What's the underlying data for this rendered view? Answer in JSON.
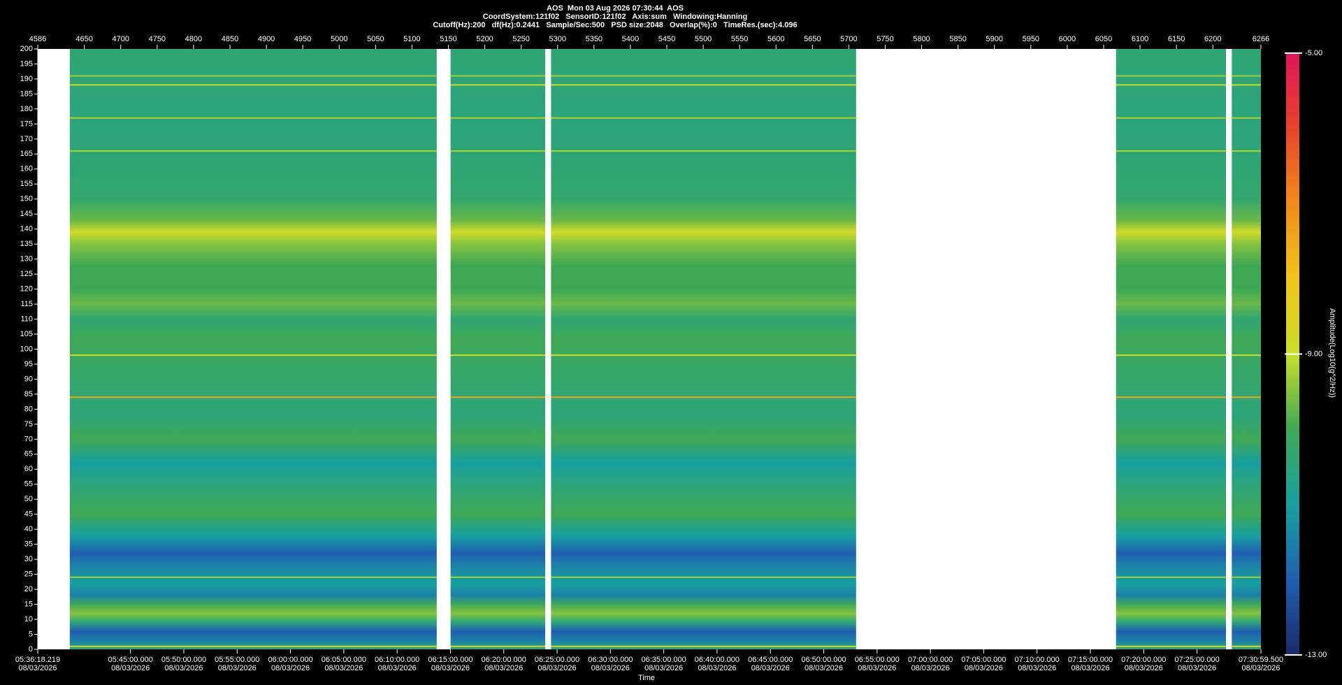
{
  "chart_data": {
    "type": "spectrogram",
    "title": "AOS  Mon 03 Aug 2026 07:30:44  AOS",
    "info_lines": [
      "CoordSystem:121f02   SensorID:121f02   Axis:sum   Windowing:Hanning",
      "Cutoff(Hz):200   df(Hz):0.2441   Sample/Sec:500   PSD size:2048   Overlap(%):0   TimeRes.(sec):4.096"
    ],
    "x_label": "Time",
    "colorbar_label": "Amplitude(Log10(g^2/Hz))",
    "xlim": [
      4586,
      6266
    ],
    "xticks": [
      4586,
      4650,
      4700,
      4750,
      4800,
      4850,
      4900,
      4950,
      5000,
      5050,
      5100,
      5150,
      5200,
      5250,
      5300,
      5350,
      5400,
      5450,
      5500,
      5550,
      5600,
      5650,
      5700,
      5750,
      5800,
      5850,
      5900,
      5950,
      6000,
      6050,
      6100,
      6150,
      6200,
      6266
    ],
    "time_lim": [
      20178.219,
      27059.5
    ],
    "time_ticks": [
      {
        "value": 20178.219,
        "label": "05:36:18.219",
        "date": "08/03/2026"
      },
      {
        "value": 20700,
        "label": "05:45:00.000",
        "date": "08/03/2026"
      },
      {
        "value": 21000,
        "label": "05:50:00.000",
        "date": "08/03/2026"
      },
      {
        "value": 21300,
        "label": "05:55:00.000",
        "date": "08/03/2026"
      },
      {
        "value": 21600,
        "label": "06:00:00.000",
        "date": "08/03/2026"
      },
      {
        "value": 21900,
        "label": "06:05:00.000",
        "date": "08/03/2026"
      },
      {
        "value": 22200,
        "label": "06:10:00.000",
        "date": "08/03/2026"
      },
      {
        "value": 22500,
        "label": "06:15:00.000",
        "date": "08/03/2026"
      },
      {
        "value": 22800,
        "label": "06:20:00.000",
        "date": "08/03/2026"
      },
      {
        "value": 23100,
        "label": "06:25:00.000",
        "date": "08/03/2026"
      },
      {
        "value": 23400,
        "label": "06:30:00.000",
        "date": "08/03/2026"
      },
      {
        "value": 23700,
        "label": "06:35:00.000",
        "date": "08/03/2026"
      },
      {
        "value": 24000,
        "label": "06:40:00.000",
        "date": "08/03/2026"
      },
      {
        "value": 24300,
        "label": "06:45:00.000",
        "date": "08/03/2026"
      },
      {
        "value": 24600,
        "label": "06:50:00.000",
        "date": "08/03/2026"
      },
      {
        "value": 24900,
        "label": "06:55:00.000",
        "date": "08/03/2026"
      },
      {
        "value": 25200,
        "label": "07:00:00.000",
        "date": "08/03/2026"
      },
      {
        "value": 25500,
        "label": "07:05:00.000",
        "date": "08/03/2026"
      },
      {
        "value": 25800,
        "label": "07:10:00.000",
        "date": "08/03/2026"
      },
      {
        "value": 26100,
        "label": "07:15:00.000",
        "date": "08/03/2026"
      },
      {
        "value": 26400,
        "label": "07:20:00.000",
        "date": "08/03/2026"
      },
      {
        "value": 26700,
        "label": "07:25:00.000",
        "date": "08/03/2026"
      },
      {
        "value": 27059.5,
        "label": "07:30:59.500",
        "date": "08/03/2026"
      }
    ],
    "ylim": [
      0,
      200
    ],
    "yticks": [
      0,
      5,
      10,
      15,
      20,
      25,
      30,
      35,
      40,
      45,
      50,
      55,
      60,
      65,
      70,
      75,
      80,
      85,
      90,
      95,
      100,
      105,
      110,
      115,
      120,
      125,
      130,
      135,
      140,
      145,
      150,
      155,
      160,
      165,
      170,
      175,
      180,
      185,
      190,
      195,
      200
    ],
    "zlim": [
      -13,
      -5
    ],
    "zticks": [
      {
        "value": -5,
        "label": "-5.00"
      },
      {
        "value": -9,
        "label": "-9.00"
      },
      {
        "value": -13,
        "label": "-13.00"
      }
    ],
    "colormap": [
      "#1b2a6b",
      "#1f5fb0",
      "#18a0a0",
      "#3fa855",
      "#c9de2a",
      "#f2c41a",
      "#f08a1c",
      "#e8442a",
      "#e0135a"
    ],
    "segments": [
      {
        "start": 4630,
        "end": 5134
      },
      {
        "start": 5153,
        "end": 5283
      },
      {
        "start": 5291,
        "end": 5710
      },
      {
        "start": 6067,
        "end": 6218
      },
      {
        "start": 6226,
        "end": 6266
      }
    ],
    "profile": {
      "freq": [
        0,
        3,
        6,
        9,
        12,
        15,
        18,
        22,
        28,
        32,
        38,
        45,
        55,
        62,
        70,
        78,
        88,
        95,
        103,
        110,
        115,
        120,
        128,
        135,
        139,
        143,
        150,
        160,
        175,
        200
      ],
      "amp": [
        -10.5,
        -11.5,
        -12,
        -10.5,
        -9.5,
        -10,
        -11.5,
        -11,
        -11.5,
        -12,
        -11,
        -10,
        -10.5,
        -11,
        -10,
        -10.5,
        -10.3,
        -10.2,
        -10,
        -10.4,
        -9.7,
        -10,
        -10,
        -9.5,
        -8.8,
        -9.7,
        -10.3,
        -10.4,
        -10.5,
        -10.4
      ]
    },
    "bands": {
      "freq": [
        1,
        24,
        84,
        98,
        166,
        177,
        188,
        191
      ],
      "amp": [
        -9,
        -9.3,
        -7.5,
        -9,
        -9.2,
        -9.2,
        -9,
        -9.3
      ]
    }
  }
}
